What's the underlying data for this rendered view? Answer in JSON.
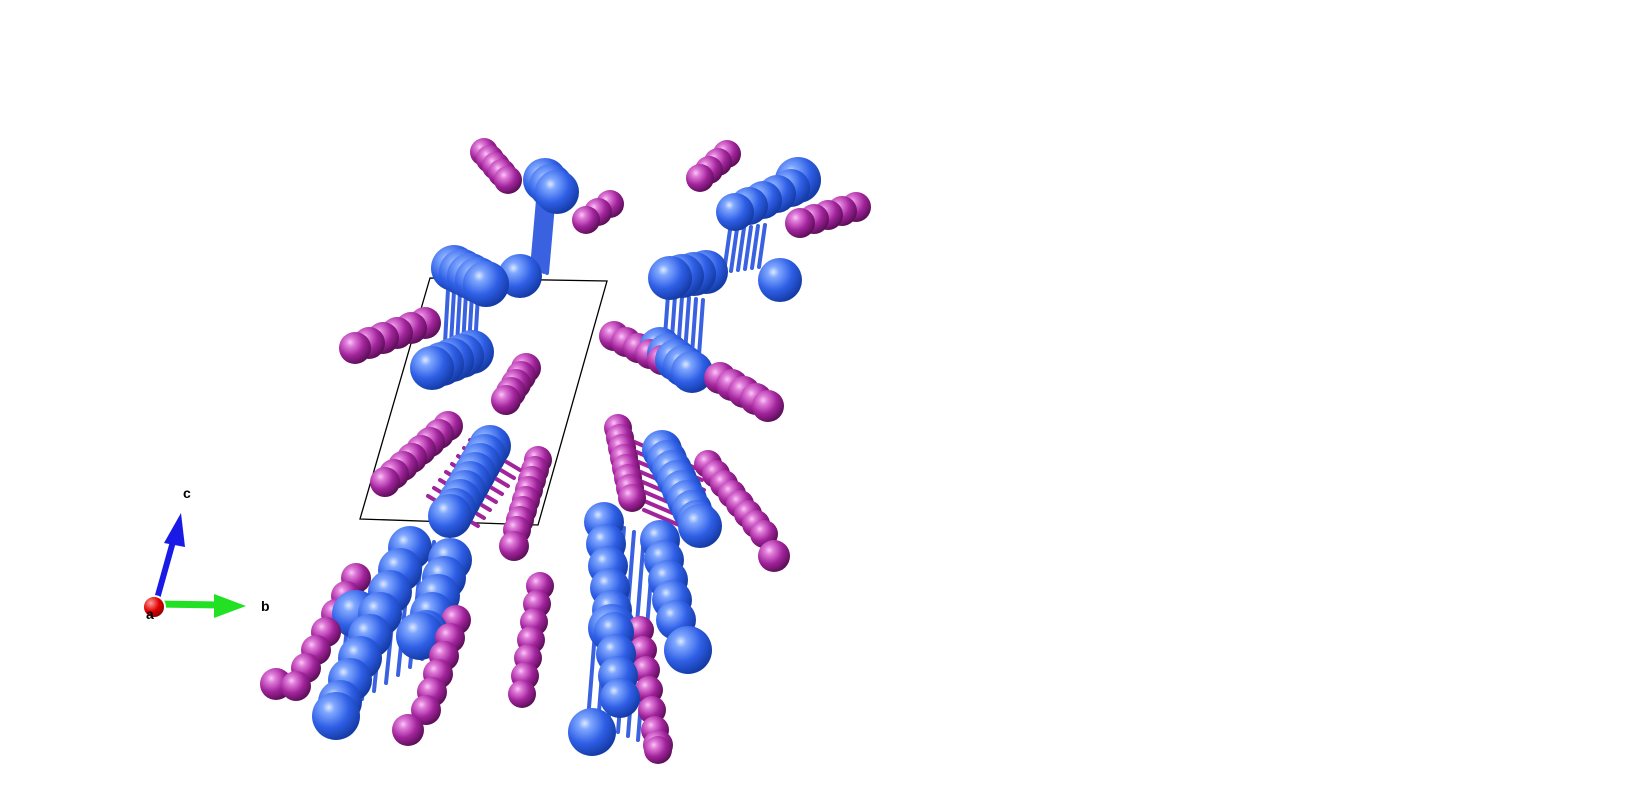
{
  "structure_view": {
    "colors": {
      "background": "#ffffff",
      "atom_blue": "#2f5fe6",
      "atom_blue_light": "#7fa7ff",
      "atom_blue_dark": "#143ba6",
      "atom_purple": "#a2249c",
      "atom_purple_light": "#e07ad9",
      "atom_purple_dark": "#5e0f5a",
      "bond_blue": "#3a62e0",
      "cell_line": "#000000"
    },
    "icons": [
      "unit-cell-outline",
      "blue-atom-sphere",
      "purple-atom-sphere",
      "bond-rod"
    ]
  },
  "orientation_axes": {
    "a": {
      "label": "a",
      "color": "#e00000"
    },
    "b": {
      "label": "b",
      "color": "#22e022"
    },
    "c": {
      "label": "c",
      "color": "#1a1ae6"
    }
  }
}
